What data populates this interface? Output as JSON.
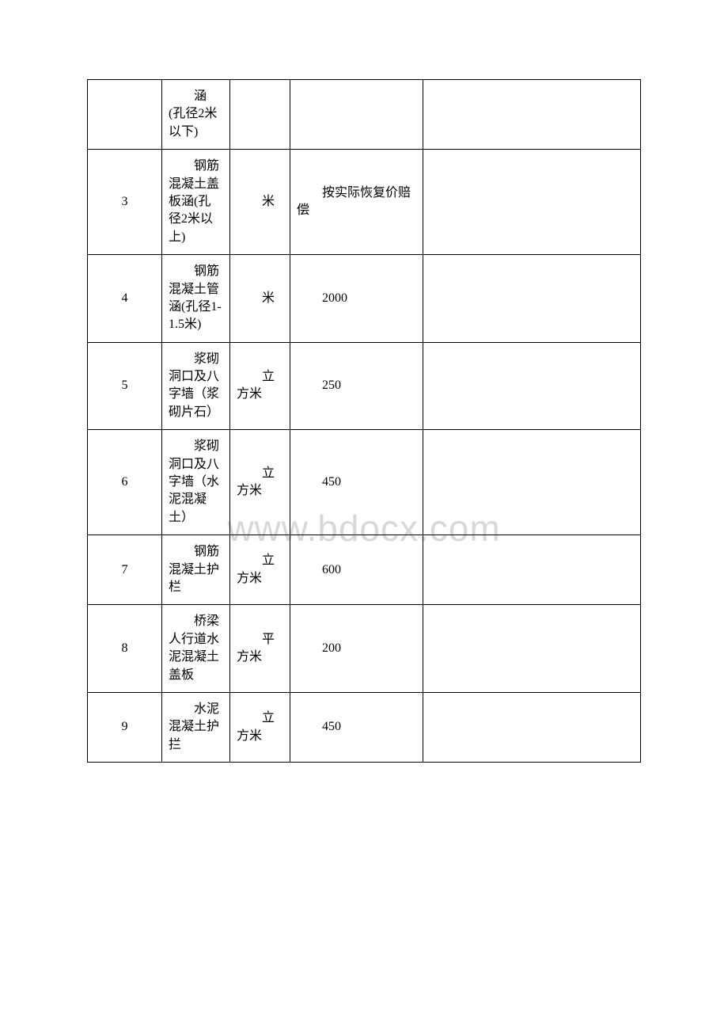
{
  "watermark": "www.bdocx.com",
  "table": {
    "columns": [
      {
        "class": "col-num"
      },
      {
        "class": "col-desc"
      },
      {
        "class": "col-unit"
      },
      {
        "class": "col-val"
      },
      {
        "class": "col-note"
      }
    ],
    "rows": [
      {
        "num": "",
        "desc": "涵(孔径2米以下)",
        "unit": "",
        "val": "",
        "note": ""
      },
      {
        "num": "3",
        "desc": "钢筋混凝土盖板涵(孔径2米以上)",
        "unit": "米",
        "val": "按实际恢复价赔偿",
        "note": ""
      },
      {
        "num": "4",
        "desc": "钢筋混凝土管涵(孔径1-1.5米)",
        "unit": "米",
        "val": "2000",
        "note": ""
      },
      {
        "num": "5",
        "desc": "浆砌洞口及八字墙（浆砌片石）",
        "unit": "立方米",
        "val": "250",
        "note": ""
      },
      {
        "num": "6",
        "desc": "浆砌洞口及八字墙（水泥混凝土）",
        "unit": "立方米",
        "val": "450",
        "note": ""
      },
      {
        "num": "7",
        "desc": "钢筋混凝土护栏",
        "unit": "立方米",
        "val": "600",
        "note": ""
      },
      {
        "num": "8",
        "desc": "桥梁人行道水泥混凝土盖板",
        "unit": "平方米",
        "val": "200",
        "note": ""
      },
      {
        "num": "9",
        "desc": "水泥混凝土护拦",
        "unit": "立方米",
        "val": "450",
        "note": ""
      }
    ],
    "border_color": "#000000",
    "font_size": 16,
    "text_color": "#000000",
    "background_color": "#ffffff"
  }
}
